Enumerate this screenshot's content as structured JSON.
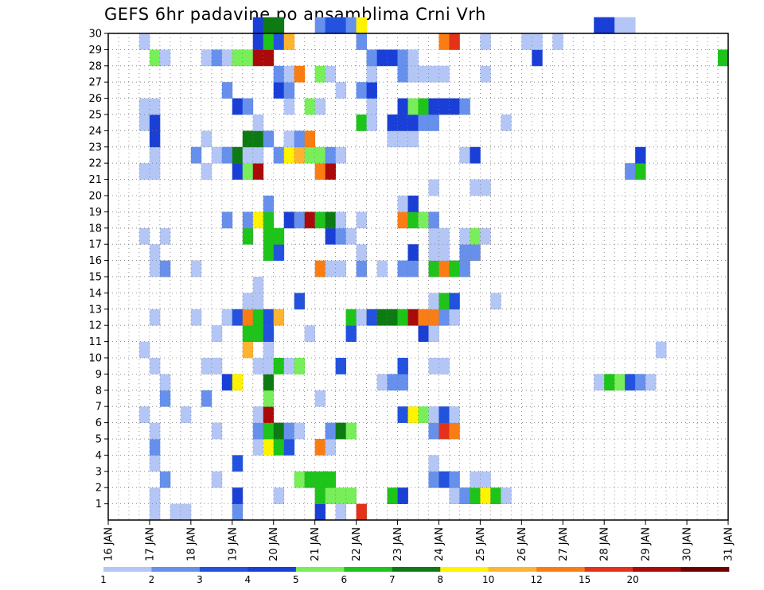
{
  "chart_data": {
    "type": "heatmap",
    "title": "GEFS 6hr padavine po ansamblima Crni Vrh",
    "xlabel": "",
    "ylabel": "",
    "x_ticks": [
      "16 JAN",
      "17 JAN",
      "18 JAN",
      "19 JAN",
      "20 JAN",
      "21 JAN",
      "22 JAN",
      "23 JAN",
      "24 JAN",
      "25 JAN",
      "26 JAN",
      "27 JAN",
      "28 JAN",
      "29 JAN",
      "30 JAN",
      "31 JAN"
    ],
    "y_ticks": [
      "1",
      "2",
      "3",
      "4",
      "5",
      "6",
      "7",
      "8",
      "9",
      "10",
      "11",
      "12",
      "13",
      "14",
      "15",
      "16",
      "17",
      "18",
      "19",
      "20",
      "21",
      "22",
      "23",
      "24",
      "25",
      "26",
      "27",
      "28",
      "29",
      "30"
    ],
    "xlim": [
      0,
      60
    ],
    "ylim": [
      0,
      30
    ],
    "x_step_hours": 6,
    "grid": "dotted",
    "colorbar": {
      "labels": [
        "1",
        "2",
        "3",
        "4",
        "5",
        "6",
        "7",
        "8",
        "10",
        "12",
        "15",
        "20"
      ],
      "colors": [
        "#b4c6f5",
        "#6690ec",
        "#2252de",
        "#1a3fd6",
        "#78ee5a",
        "#1ec41a",
        "#0e7a14",
        "#fff300",
        "#ffb431",
        "#fa7d14",
        "#e3321a",
        "#aa0a0a",
        "#6e0000"
      ]
    },
    "cells": [
      [
        0,
        4,
        0
      ],
      [
        0,
        6,
        0
      ],
      [
        0,
        7,
        0
      ],
      [
        0,
        12,
        1
      ],
      [
        0,
        20,
        3
      ],
      [
        0,
        22,
        0
      ],
      [
        0,
        24,
        10
      ],
      [
        1,
        4,
        0
      ],
      [
        1,
        12,
        3
      ],
      [
        1,
        16,
        0
      ],
      [
        1,
        20,
        5
      ],
      [
        1,
        21,
        4
      ],
      [
        1,
        22,
        4
      ],
      [
        1,
        23,
        4
      ],
      [
        1,
        27,
        5
      ],
      [
        1,
        28,
        3
      ],
      [
        1,
        33,
        0
      ],
      [
        1,
        34,
        1
      ],
      [
        1,
        35,
        5
      ],
      [
        1,
        36,
        7
      ],
      [
        1,
        37,
        5
      ],
      [
        1,
        38,
        0
      ],
      [
        2,
        5,
        1
      ],
      [
        2,
        10,
        0
      ],
      [
        2,
        18,
        4
      ],
      [
        2,
        19,
        5
      ],
      [
        2,
        20,
        5
      ],
      [
        2,
        21,
        5
      ],
      [
        2,
        31,
        1
      ],
      [
        2,
        32,
        2
      ],
      [
        2,
        33,
        1
      ],
      [
        2,
        35,
        0
      ],
      [
        2,
        36,
        0
      ],
      [
        3,
        4,
        0
      ],
      [
        3,
        12,
        2
      ],
      [
        3,
        31,
        0
      ],
      [
        4,
        4,
        1
      ],
      [
        4,
        14,
        0
      ],
      [
        4,
        15,
        7
      ],
      [
        4,
        16,
        5
      ],
      [
        4,
        17,
        2
      ],
      [
        4,
        20,
        9
      ],
      [
        4,
        21,
        0
      ],
      [
        5,
        4,
        0
      ],
      [
        5,
        10,
        0
      ],
      [
        5,
        14,
        1
      ],
      [
        5,
        15,
        5
      ],
      [
        5,
        16,
        6
      ],
      [
        5,
        17,
        1
      ],
      [
        5,
        18,
        0
      ],
      [
        5,
        21,
        1
      ],
      [
        5,
        22,
        6
      ],
      [
        5,
        23,
        4
      ],
      [
        5,
        31,
        1
      ],
      [
        5,
        32,
        10
      ],
      [
        5,
        33,
        9
      ],
      [
        6,
        3,
        0
      ],
      [
        6,
        7,
        0
      ],
      [
        6,
        14,
        0
      ],
      [
        6,
        15,
        11
      ],
      [
        6,
        28,
        2
      ],
      [
        6,
        29,
        7
      ],
      [
        6,
        30,
        4
      ],
      [
        6,
        31,
        0
      ],
      [
        6,
        32,
        2
      ],
      [
        6,
        33,
        0
      ],
      [
        7,
        5,
        1
      ],
      [
        7,
        9,
        1
      ],
      [
        7,
        15,
        4
      ],
      [
        7,
        20,
        0
      ],
      [
        8,
        5,
        0
      ],
      [
        8,
        11,
        3
      ],
      [
        8,
        12,
        7
      ],
      [
        8,
        15,
        6
      ],
      [
        8,
        26,
        0
      ],
      [
        8,
        27,
        1
      ],
      [
        8,
        28,
        1
      ],
      [
        8,
        47,
        0
      ],
      [
        8,
        48,
        5
      ],
      [
        8,
        49,
        4
      ],
      [
        8,
        50,
        2
      ],
      [
        8,
        51,
        1
      ],
      [
        8,
        52,
        0
      ],
      [
        9,
        4,
        0
      ],
      [
        9,
        9,
        0
      ],
      [
        9,
        10,
        0
      ],
      [
        9,
        14,
        0
      ],
      [
        9,
        15,
        0
      ],
      [
        9,
        16,
        5
      ],
      [
        9,
        17,
        0
      ],
      [
        9,
        18,
        4
      ],
      [
        9,
        22,
        2
      ],
      [
        9,
        28,
        2
      ],
      [
        9,
        31,
        0
      ],
      [
        9,
        32,
        0
      ],
      [
        10,
        3,
        0
      ],
      [
        10,
        13,
        8
      ],
      [
        10,
        15,
        0
      ],
      [
        10,
        53,
        0
      ],
      [
        11,
        10,
        0
      ],
      [
        11,
        13,
        5
      ],
      [
        11,
        14,
        5
      ],
      [
        11,
        15,
        2
      ],
      [
        11,
        19,
        0
      ],
      [
        11,
        23,
        2
      ],
      [
        11,
        30,
        3
      ],
      [
        11,
        31,
        0
      ],
      [
        12,
        4,
        0
      ],
      [
        12,
        8,
        0
      ],
      [
        12,
        11,
        0
      ],
      [
        12,
        12,
        2
      ],
      [
        12,
        13,
        9
      ],
      [
        12,
        14,
        5
      ],
      [
        12,
        15,
        2
      ],
      [
        12,
        16,
        8
      ],
      [
        12,
        23,
        5
      ],
      [
        12,
        24,
        0
      ],
      [
        12,
        25,
        2
      ],
      [
        12,
        26,
        6
      ],
      [
        12,
        27,
        6
      ],
      [
        12,
        28,
        5
      ],
      [
        12,
        29,
        11
      ],
      [
        12,
        30,
        9
      ],
      [
        12,
        31,
        9
      ],
      [
        12,
        32,
        1
      ],
      [
        12,
        33,
        0
      ],
      [
        13,
        13,
        0
      ],
      [
        13,
        14,
        0
      ],
      [
        13,
        18,
        2
      ],
      [
        13,
        31,
        0
      ],
      [
        13,
        32,
        5
      ],
      [
        13,
        33,
        2
      ],
      [
        13,
        37,
        0
      ],
      [
        14,
        14,
        0
      ],
      [
        15,
        4,
        0
      ],
      [
        15,
        5,
        1
      ],
      [
        15,
        8,
        0
      ],
      [
        15,
        20,
        9
      ],
      [
        15,
        21,
        0
      ],
      [
        15,
        22,
        0
      ],
      [
        15,
        24,
        1
      ],
      [
        15,
        26,
        0
      ],
      [
        15,
        28,
        1
      ],
      [
        15,
        29,
        1
      ],
      [
        15,
        31,
        5
      ],
      [
        15,
        32,
        9
      ],
      [
        15,
        33,
        5
      ],
      [
        15,
        34,
        1
      ],
      [
        16,
        4,
        0
      ],
      [
        16,
        15,
        5
      ],
      [
        16,
        16,
        2
      ],
      [
        16,
        24,
        0
      ],
      [
        16,
        29,
        3
      ],
      [
        16,
        31,
        0
      ],
      [
        16,
        32,
        0
      ],
      [
        16,
        34,
        1
      ],
      [
        16,
        35,
        1
      ],
      [
        17,
        3,
        0
      ],
      [
        17,
        5,
        0
      ],
      [
        17,
        13,
        5
      ],
      [
        17,
        15,
        5
      ],
      [
        17,
        16,
        5
      ],
      [
        17,
        21,
        3
      ],
      [
        17,
        22,
        1
      ],
      [
        17,
        23,
        0
      ],
      [
        17,
        31,
        0
      ],
      [
        17,
        32,
        0
      ],
      [
        17,
        34,
        0
      ],
      [
        17,
        35,
        4
      ],
      [
        17,
        36,
        0
      ],
      [
        18,
        11,
        1
      ],
      [
        18,
        13,
        1
      ],
      [
        18,
        14,
        7
      ],
      [
        18,
        15,
        5
      ],
      [
        18,
        17,
        3
      ],
      [
        18,
        18,
        1
      ],
      [
        18,
        19,
        11
      ],
      [
        18,
        20,
        5
      ],
      [
        18,
        21,
        6
      ],
      [
        18,
        22,
        0
      ],
      [
        18,
        24,
        0
      ],
      [
        18,
        28,
        9
      ],
      [
        18,
        29,
        5
      ],
      [
        18,
        30,
        4
      ],
      [
        18,
        31,
        1
      ],
      [
        19,
        15,
        1
      ],
      [
        19,
        28,
        0
      ],
      [
        19,
        29,
        3
      ],
      [
        20,
        31,
        0
      ],
      [
        20,
        35,
        0
      ],
      [
        20,
        36,
        0
      ],
      [
        21,
        3,
        0
      ],
      [
        21,
        4,
        0
      ],
      [
        21,
        9,
        0
      ],
      [
        21,
        12,
        3
      ],
      [
        21,
        13,
        4
      ],
      [
        21,
        14,
        11
      ],
      [
        21,
        20,
        9
      ],
      [
        21,
        21,
        11
      ],
      [
        21,
        50,
        1
      ],
      [
        21,
        51,
        5
      ],
      [
        22,
        4,
        0
      ],
      [
        22,
        8,
        1
      ],
      [
        22,
        10,
        0
      ],
      [
        22,
        11,
        1
      ],
      [
        22,
        12,
        6
      ],
      [
        22,
        13,
        0
      ],
      [
        22,
        14,
        0
      ],
      [
        22,
        16,
        1
      ],
      [
        22,
        17,
        7
      ],
      [
        22,
        18,
        8
      ],
      [
        22,
        19,
        4
      ],
      [
        22,
        20,
        4
      ],
      [
        22,
        21,
        1
      ],
      [
        22,
        22,
        0
      ],
      [
        22,
        34,
        0
      ],
      [
        22,
        35,
        3
      ],
      [
        22,
        51,
        3
      ],
      [
        23,
        4,
        3
      ],
      [
        23,
        9,
        0
      ],
      [
        23,
        13,
        6
      ],
      [
        23,
        14,
        6
      ],
      [
        23,
        15,
        1
      ],
      [
        23,
        17,
        0
      ],
      [
        23,
        18,
        1
      ],
      [
        23,
        19,
        9
      ],
      [
        23,
        27,
        0
      ],
      [
        23,
        28,
        0
      ],
      [
        23,
        29,
        0
      ],
      [
        24,
        3,
        0
      ],
      [
        24,
        4,
        3
      ],
      [
        24,
        14,
        0
      ],
      [
        24,
        24,
        5
      ],
      [
        24,
        25,
        0
      ],
      [
        24,
        27,
        3
      ],
      [
        24,
        28,
        3
      ],
      [
        24,
        29,
        3
      ],
      [
        24,
        30,
        1
      ],
      [
        24,
        31,
        1
      ],
      [
        24,
        38,
        0
      ],
      [
        25,
        3,
        0
      ],
      [
        25,
        4,
        0
      ],
      [
        25,
        12,
        3
      ],
      [
        25,
        13,
        1
      ],
      [
        25,
        17,
        0
      ],
      [
        25,
        19,
        4
      ],
      [
        25,
        20,
        0
      ],
      [
        25,
        25,
        0
      ],
      [
        25,
        28,
        3
      ],
      [
        25,
        29,
        4
      ],
      [
        25,
        30,
        5
      ],
      [
        25,
        31,
        3
      ],
      [
        25,
        32,
        3
      ],
      [
        25,
        33,
        3
      ],
      [
        25,
        34,
        1
      ],
      [
        26,
        11,
        1
      ],
      [
        26,
        16,
        3
      ],
      [
        26,
        17,
        1
      ],
      [
        26,
        22,
        0
      ],
      [
        26,
        24,
        1
      ],
      [
        26,
        25,
        3
      ],
      [
        27,
        16,
        1
      ],
      [
        27,
        17,
        0
      ],
      [
        27,
        18,
        9
      ],
      [
        27,
        20,
        4
      ],
      [
        27,
        21,
        0
      ],
      [
        27,
        25,
        0
      ],
      [
        27,
        28,
        1
      ],
      [
        27,
        29,
        0
      ],
      [
        27,
        30,
        0
      ],
      [
        27,
        31,
        0
      ],
      [
        27,
        32,
        0
      ],
      [
        27,
        36,
        0
      ],
      [
        28,
        4,
        4
      ],
      [
        28,
        5,
        0
      ],
      [
        28,
        9,
        0
      ],
      [
        28,
        10,
        1
      ],
      [
        28,
        11,
        0
      ],
      [
        28,
        12,
        4
      ],
      [
        28,
        13,
        4
      ],
      [
        28,
        14,
        11
      ],
      [
        28,
        15,
        11
      ],
      [
        28,
        25,
        1
      ],
      [
        28,
        26,
        3
      ],
      [
        28,
        27,
        3
      ],
      [
        28,
        28,
        1
      ],
      [
        28,
        29,
        0
      ],
      [
        28,
        41,
        3
      ],
      [
        28,
        59,
        5
      ],
      [
        29,
        3,
        0
      ],
      [
        29,
        14,
        3
      ],
      [
        29,
        15,
        5
      ],
      [
        29,
        16,
        2
      ],
      [
        29,
        17,
        8
      ],
      [
        29,
        24,
        1
      ],
      [
        29,
        32,
        9
      ],
      [
        29,
        33,
        10
      ],
      [
        29,
        36,
        0
      ],
      [
        29,
        40,
        0
      ],
      [
        29,
        41,
        0
      ],
      [
        29,
        43,
        0
      ],
      [
        30,
        14,
        3
      ],
      [
        30,
        15,
        6
      ],
      [
        30,
        16,
        6
      ],
      [
        30,
        20,
        1
      ],
      [
        30,
        21,
        2
      ],
      [
        30,
        22,
        2
      ],
      [
        30,
        23,
        1
      ],
      [
        30,
        24,
        7
      ],
      [
        30,
        47,
        3
      ],
      [
        30,
        48,
        3
      ],
      [
        30,
        49,
        0
      ],
      [
        30,
        50,
        0
      ]
    ]
  }
}
